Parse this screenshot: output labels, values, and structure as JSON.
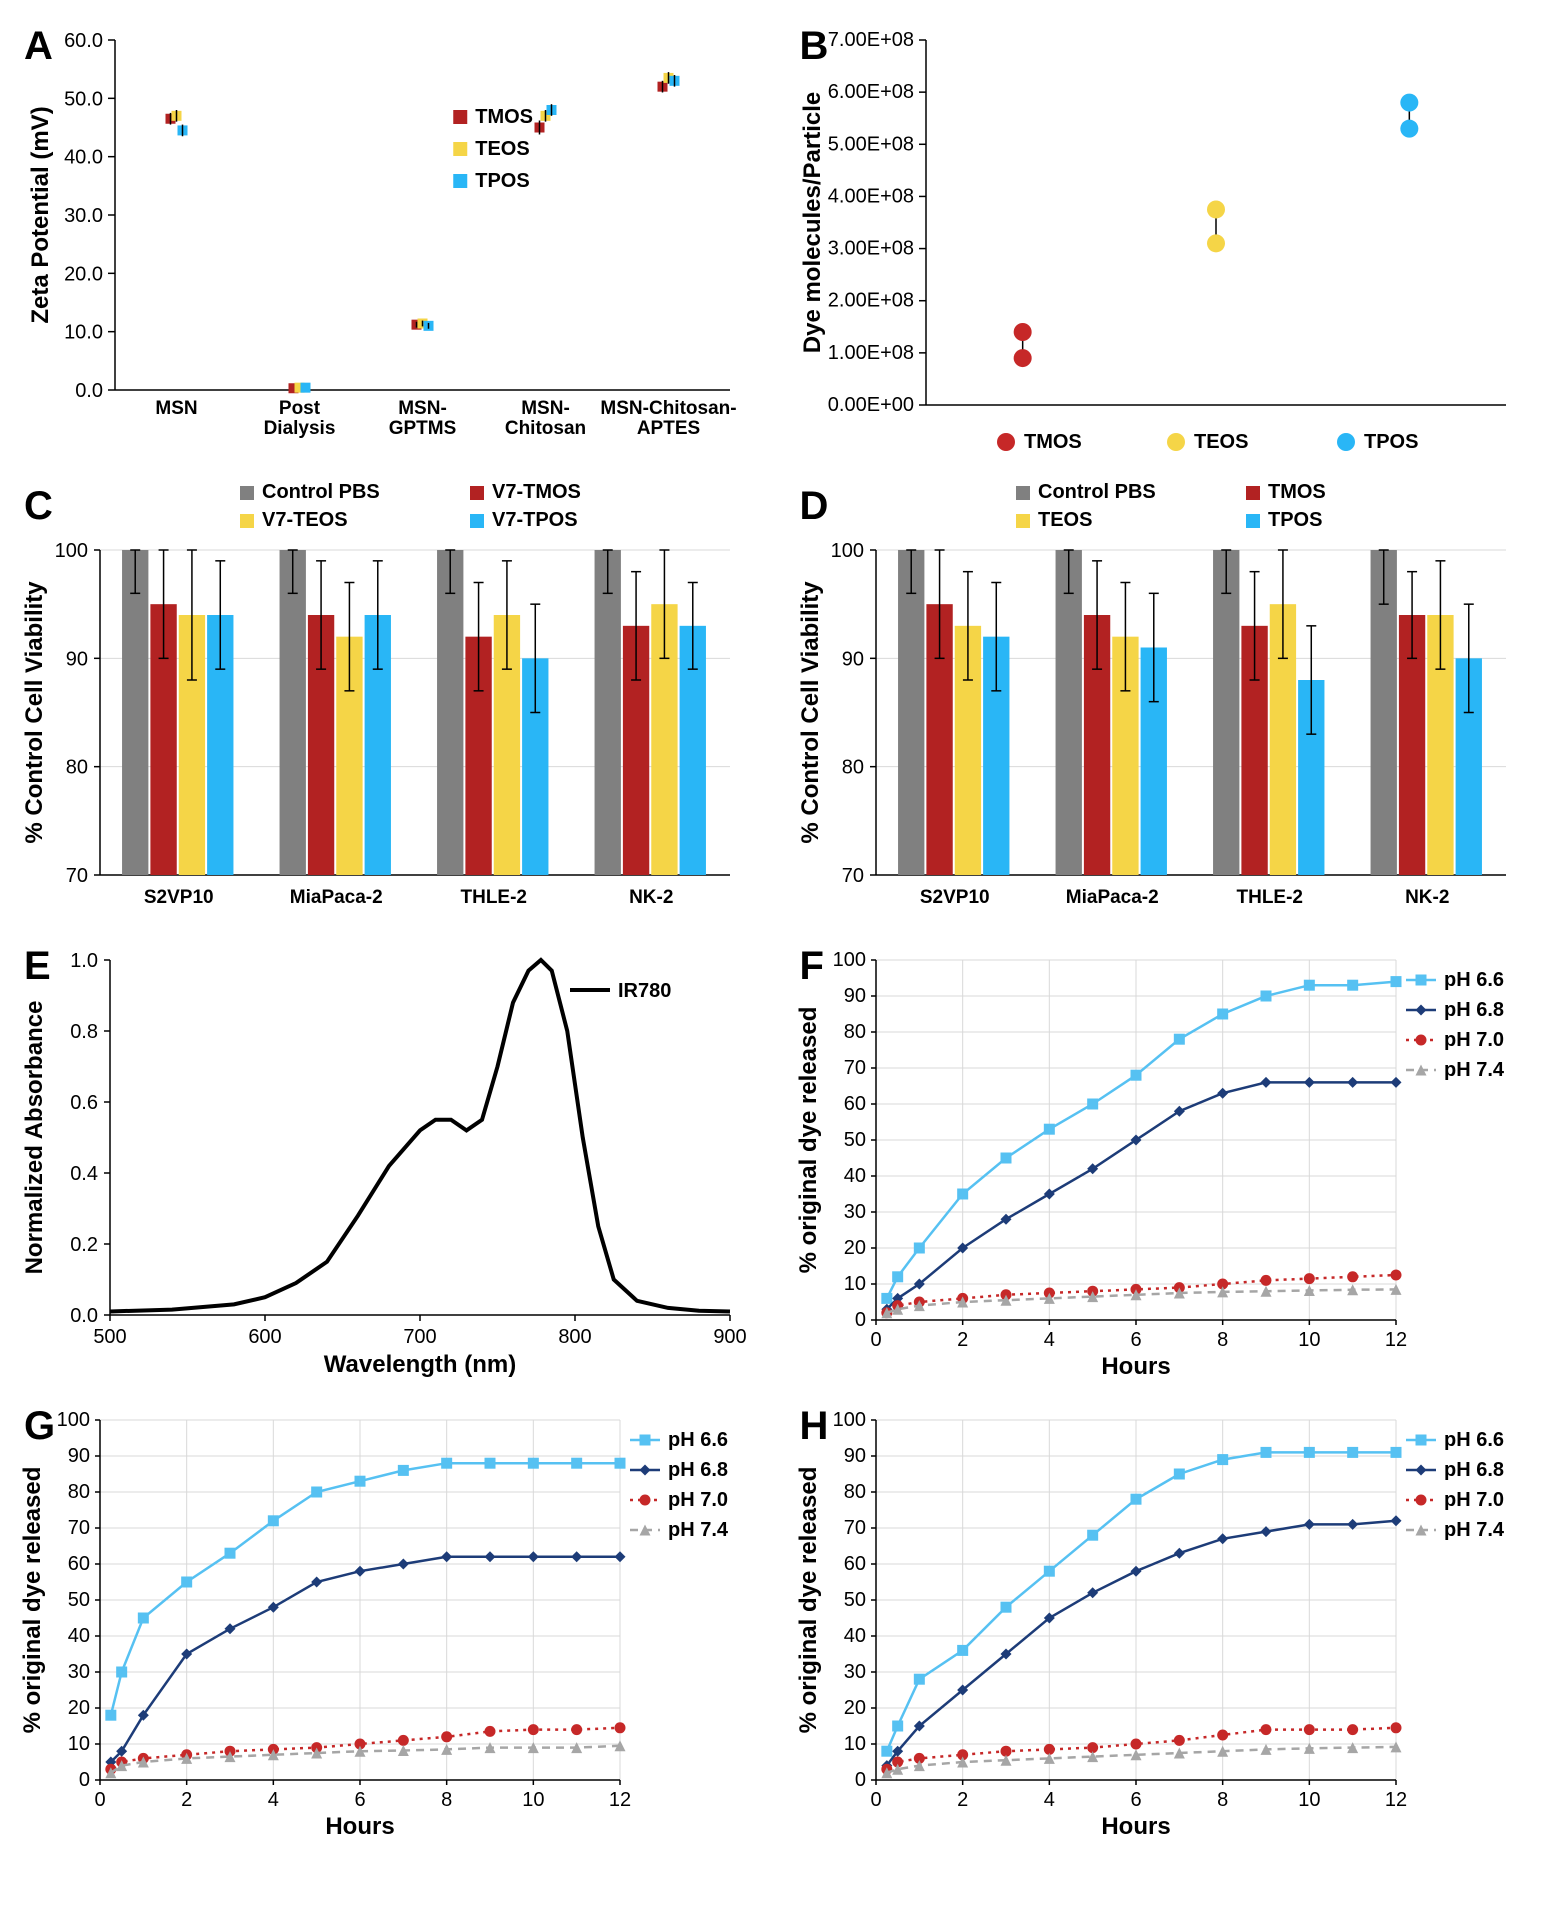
{
  "colors": {
    "gray": "#808080",
    "red": "#b22222",
    "yellow": "#f5d547",
    "cyan": "#29b6f6",
    "navy": "#1d3c78",
    "lightblue": "#56c1f2",
    "darkred": "#c62828",
    "black": "#000000",
    "lightgray": "#bfbfbf",
    "grid": "#e0e0e0"
  },
  "panelA": {
    "label": "A",
    "ylabel": "Zeta Potential (mV)",
    "ylim": [
      0,
      60
    ],
    "ytick_step": 10,
    "categories": [
      "MSN",
      "Post Dialysis",
      "MSN-GPTMS",
      "MSN-Chitosan",
      "MSN-Chitosan-APTES"
    ],
    "cat_split": [
      [
        "MSN"
      ],
      [
        "Post",
        "Dialysis"
      ],
      [
        "MSN-",
        "GPTMS"
      ],
      [
        "MSN-",
        "Chitosan"
      ],
      [
        "MSN-Chitosan-",
        "APTES"
      ]
    ],
    "series": [
      {
        "name": "TMOS",
        "color": "#b22222",
        "vals": [
          46.5,
          0.3,
          11.2,
          45.0,
          52.0
        ],
        "err": [
          1,
          0.2,
          0.5,
          1.2,
          1
        ]
      },
      {
        "name": "TEOS",
        "color": "#f5d547",
        "vals": [
          47.0,
          0.4,
          11.4,
          47.0,
          53.5
        ],
        "err": [
          1,
          0.2,
          0.5,
          1,
          1
        ]
      },
      {
        "name": "TPOS",
        "color": "#29b6f6",
        "vals": [
          44.5,
          0.4,
          11.0,
          48.0,
          53.0
        ],
        "err": [
          1,
          0.2,
          0.5,
          1,
          1
        ]
      }
    ]
  },
  "panelB": {
    "label": "B",
    "ylabel": "Dye molecules/Particle",
    "ylim": [
      0,
      700000000.0
    ],
    "yticks_labels": [
      "0.00E+00",
      "1.00E+08",
      "2.00E+08",
      "3.00E+08",
      "4.00E+08",
      "5.00E+08",
      "6.00E+08",
      "7.00E+08"
    ],
    "ytick_step": 100000000.0,
    "xcats": [
      "TMOS",
      "TEOS",
      "TPOS"
    ],
    "series": [
      {
        "name": "TMOS",
        "color": "#c62828",
        "vals": [
          90000000.0,
          140000000.0
        ]
      },
      {
        "name": "TEOS",
        "color": "#f5d547",
        "vals": [
          310000000.0,
          375000000.0
        ]
      },
      {
        "name": "TPOS",
        "color": "#29b6f6",
        "vals": [
          530000000.0,
          580000000.0
        ]
      }
    ]
  },
  "panelC": {
    "label": "C",
    "ylabel": "% Control Cell Viability",
    "ylim": [
      70,
      100
    ],
    "yticks": [
      70,
      80,
      90,
      100
    ],
    "categories": [
      "S2VP10",
      "MiaPaca-2",
      "THLE-2",
      "NK-2"
    ],
    "series": [
      {
        "name": "Control PBS",
        "color": "#808080",
        "vals": [
          100,
          100,
          100,
          100
        ],
        "err": [
          4,
          4,
          4,
          4
        ]
      },
      {
        "name": "V7-TMOS",
        "color": "#b22222",
        "vals": [
          95,
          94,
          92,
          93
        ],
        "err": [
          5,
          5,
          5,
          5
        ]
      },
      {
        "name": "V7-TEOS",
        "color": "#f5d547",
        "vals": [
          94,
          92,
          94,
          95
        ],
        "err": [
          6,
          5,
          5,
          5
        ]
      },
      {
        "name": "V7-TPOS",
        "color": "#29b6f6",
        "vals": [
          94,
          94,
          90,
          93
        ],
        "err": [
          5,
          5,
          5,
          4
        ]
      }
    ]
  },
  "panelD": {
    "label": "D",
    "ylabel": "% Control Cell Viability",
    "ylim": [
      70,
      100
    ],
    "yticks": [
      70,
      80,
      90,
      100
    ],
    "categories": [
      "S2VP10",
      "MiaPaca-2",
      "THLE-2",
      "NK-2"
    ],
    "series": [
      {
        "name": "Control PBS",
        "color": "#808080",
        "vals": [
          100,
          100,
          100,
          100
        ],
        "err": [
          4,
          4,
          4,
          5
        ]
      },
      {
        "name": "TMOS",
        "color": "#b22222",
        "vals": [
          95,
          94,
          93,
          94
        ],
        "err": [
          5,
          5,
          5,
          4
        ]
      },
      {
        "name": "TEOS",
        "color": "#f5d547",
        "vals": [
          93,
          92,
          95,
          94
        ],
        "err": [
          5,
          5,
          5,
          5
        ]
      },
      {
        "name": "TPOS",
        "color": "#29b6f6",
        "vals": [
          92,
          91,
          88,
          90
        ],
        "err": [
          5,
          5,
          5,
          5
        ]
      }
    ]
  },
  "panelE": {
    "label": "E",
    "xlabel": "Wavelength (nm)",
    "ylabel": "Normalized Absorbance",
    "xlim": [
      500,
      900
    ],
    "xticks": [
      500,
      600,
      700,
      800,
      900
    ],
    "ylim": [
      0,
      1.0
    ],
    "yticks": [
      0.0,
      0.2,
      0.4,
      0.6,
      0.8,
      1.0
    ],
    "legend": "IR780",
    "curve": [
      [
        500,
        0.01
      ],
      [
        540,
        0.015
      ],
      [
        580,
        0.03
      ],
      [
        600,
        0.05
      ],
      [
        620,
        0.09
      ],
      [
        640,
        0.15
      ],
      [
        660,
        0.28
      ],
      [
        680,
        0.42
      ],
      [
        700,
        0.52
      ],
      [
        710,
        0.55
      ],
      [
        720,
        0.55
      ],
      [
        730,
        0.52
      ],
      [
        740,
        0.55
      ],
      [
        750,
        0.7
      ],
      [
        760,
        0.88
      ],
      [
        770,
        0.97
      ],
      [
        778,
        1.0
      ],
      [
        785,
        0.97
      ],
      [
        795,
        0.8
      ],
      [
        805,
        0.5
      ],
      [
        815,
        0.25
      ],
      [
        825,
        0.1
      ],
      [
        840,
        0.04
      ],
      [
        860,
        0.02
      ],
      [
        880,
        0.012
      ],
      [
        900,
        0.01
      ]
    ]
  },
  "panelFGH_common": {
    "xlabel": "Hours",
    "ylabel": "% original dye released",
    "xlim": [
      0,
      12
    ],
    "xticks": [
      0,
      2,
      4,
      6,
      8,
      10,
      12
    ],
    "ylim": [
      0,
      100
    ],
    "yticks": [
      0,
      10,
      20,
      30,
      40,
      50,
      60,
      70,
      80,
      90,
      100
    ],
    "legend": [
      {
        "name": "pH 6.6",
        "color": "#56c1f2",
        "marker": "square",
        "line": "solid"
      },
      {
        "name": "pH 6.8",
        "color": "#1d3c78",
        "marker": "diamond",
        "line": "solid"
      },
      {
        "name": "pH 7.0",
        "color": "#c62828",
        "marker": "circle",
        "line": "dot"
      },
      {
        "name": "pH 7.4",
        "color": "#a6a6a6",
        "marker": "triangle",
        "line": "dash"
      }
    ]
  },
  "panelF": {
    "label": "F",
    "data": {
      "x": [
        0.25,
        0.5,
        1,
        2,
        3,
        4,
        5,
        6,
        7,
        8,
        9,
        10,
        11,
        12
      ],
      "pH66": [
        6,
        12,
        20,
        35,
        45,
        53,
        60,
        68,
        78,
        85,
        90,
        93,
        93,
        94
      ],
      "pH68": [
        3,
        6,
        10,
        20,
        28,
        35,
        42,
        50,
        58,
        63,
        66,
        66,
        66,
        66
      ],
      "pH70": [
        2,
        4,
        5,
        6,
        7,
        7.5,
        8,
        8.5,
        9,
        10,
        11,
        11.5,
        12,
        12.5
      ],
      "pH74": [
        2,
        3,
        4,
        5,
        5.5,
        6,
        6.5,
        7,
        7.5,
        7.8,
        8,
        8.2,
        8.4,
        8.5
      ]
    }
  },
  "panelG": {
    "label": "G",
    "data": {
      "x": [
        0.25,
        0.5,
        1,
        2,
        3,
        4,
        5,
        6,
        7,
        8,
        9,
        10,
        11,
        12
      ],
      "pH66": [
        18,
        30,
        45,
        55,
        63,
        72,
        80,
        83,
        86,
        88,
        88,
        88,
        88,
        88
      ],
      "pH68": [
        5,
        8,
        18,
        35,
        42,
        48,
        55,
        58,
        60,
        62,
        62,
        62,
        62,
        62
      ],
      "pH70": [
        3,
        5,
        6,
        7,
        8,
        8.5,
        9,
        10,
        11,
        12,
        13.5,
        14,
        14,
        14.5
      ],
      "pH74": [
        2,
        4,
        5,
        6,
        6.5,
        7,
        7.5,
        8,
        8.2,
        8.5,
        9,
        9,
        9,
        9.5
      ]
    }
  },
  "panelH": {
    "label": "H",
    "data": {
      "x": [
        0.25,
        0.5,
        1,
        2,
        3,
        4,
        5,
        6,
        7,
        8,
        9,
        10,
        11,
        12
      ],
      "pH66": [
        8,
        15,
        28,
        36,
        48,
        58,
        68,
        78,
        85,
        89,
        91,
        91,
        91,
        91
      ],
      "pH68": [
        4,
        8,
        15,
        25,
        35,
        45,
        52,
        58,
        63,
        67,
        69,
        71,
        71,
        72
      ],
      "pH70": [
        3,
        5,
        6,
        7,
        8,
        8.5,
        9,
        10,
        11,
        12.5,
        14,
        14,
        14,
        14.5
      ],
      "pH74": [
        2,
        3,
        4,
        5,
        5.5,
        6,
        6.5,
        7,
        7.5,
        8,
        8.5,
        8.8,
        9,
        9.2
      ]
    }
  }
}
